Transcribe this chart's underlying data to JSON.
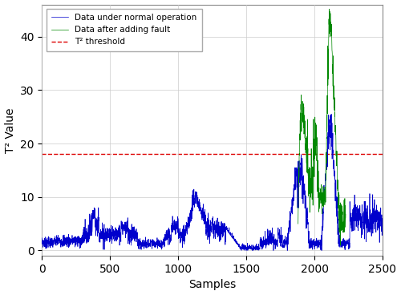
{
  "title": "",
  "xlabel": "Samples",
  "ylabel": "T² Value",
  "xlim": [
    0,
    2500
  ],
  "ylim": [
    -1,
    46
  ],
  "threshold": 18.0,
  "threshold_label": "T² threshold",
  "blue_label": "Data under normal operation",
  "green_label": "Data after adding fault",
  "threshold_color": "#dd0000",
  "blue_color": "#0000cc",
  "green_color": "#008800",
  "grid_color": "#cccccc",
  "background_color": "#ffffff",
  "yticks": [
    0,
    10,
    20,
    30,
    40
  ],
  "xticks": [
    0,
    500,
    1000,
    1500,
    2000,
    2500
  ],
  "fault_start": 1880,
  "fault_end": 2230
}
